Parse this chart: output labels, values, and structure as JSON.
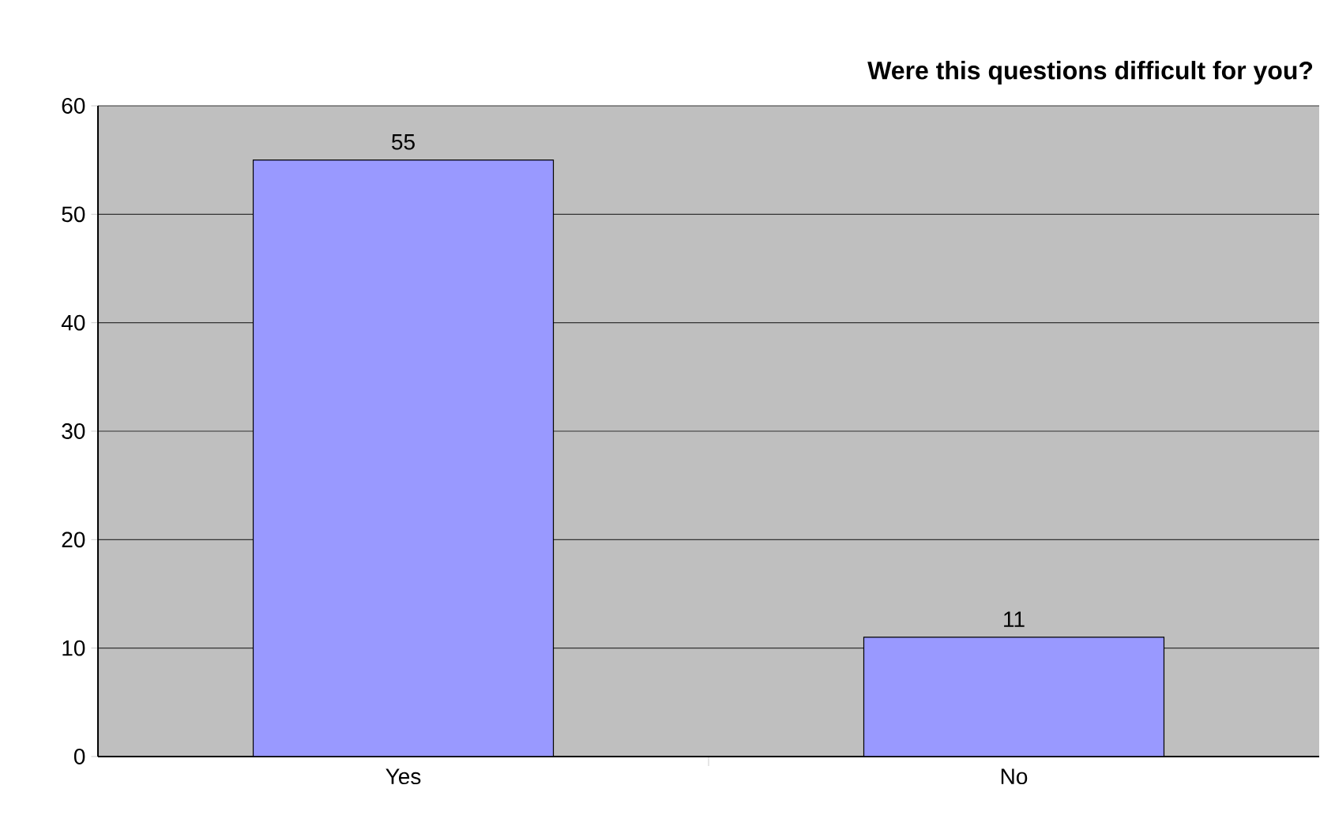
{
  "chart_data": {
    "type": "bar",
    "title": "Were this questions difficult for you?",
    "categories": [
      "Yes",
      "No"
    ],
    "values": [
      55,
      11
    ],
    "color": "#9999ff",
    "ylim": [
      0,
      60
    ],
    "yticks": [
      0,
      10,
      20,
      30,
      40,
      50,
      60
    ],
    "grid": "y",
    "data_labels": true
  }
}
